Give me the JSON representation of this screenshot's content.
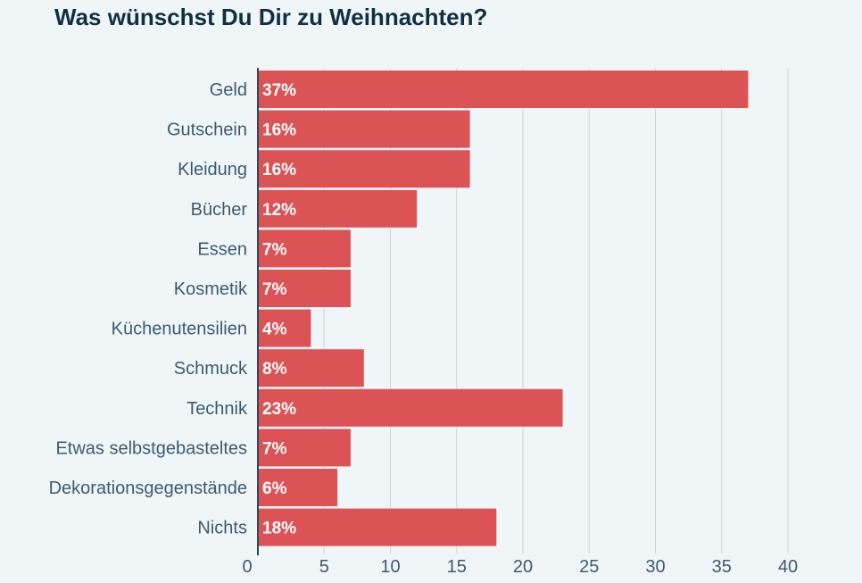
{
  "chart_data": {
    "type": "bar",
    "orientation": "horizontal",
    "title": "Was wünschst Du Dir zu Weihnachten?",
    "categories": [
      "Geld",
      "Gutschein",
      "Kleidung",
      "Bücher",
      "Essen",
      "Kosmetik",
      "Küchenutensilien",
      "Schmuck",
      "Technik",
      "Etwas selbstgebasteltes",
      "Dekorationsgegenstände",
      "Nichts"
    ],
    "values": [
      37,
      16,
      16,
      12,
      7,
      7,
      4,
      8,
      23,
      7,
      6,
      18
    ],
    "value_labels": [
      "37%",
      "16%",
      "16%",
      "12%",
      "7%",
      "7%",
      "4%",
      "8%",
      "23%",
      "7%",
      "6%",
      "18%"
    ],
    "xlim": [
      0,
      40
    ],
    "x_ticks": [
      0,
      5,
      10,
      15,
      20,
      25,
      30,
      35,
      40
    ],
    "x_tick_labels": [
      "0",
      "5",
      "10",
      "15",
      "20",
      "25",
      "30",
      "35",
      "40"
    ],
    "grid": "vertical",
    "legend": "none",
    "colors": {
      "bar": "#dc5356",
      "grid": "#c8d3db",
      "axis": "#2b4a5e",
      "title": "#0f3043",
      "label": "#3b5b70",
      "bar_label": "#ffffff",
      "background": "#f0f5f8"
    }
  }
}
